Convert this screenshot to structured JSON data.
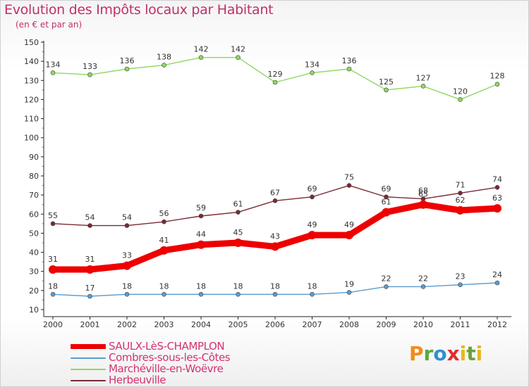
{
  "header": {
    "title": "Evolution des Impôts locaux par Habitant",
    "subtitle": "(en € et par an)"
  },
  "logo": {
    "text": "Proxiti"
  },
  "chart_data": {
    "type": "line",
    "title": "Evolution des Impôts locaux par Habitant",
    "subtitle": "(en € et par an)",
    "xlabel": "",
    "ylabel": "",
    "ylim": [
      10,
      150
    ],
    "yticks": [
      10,
      20,
      30,
      40,
      50,
      60,
      70,
      80,
      90,
      100,
      110,
      120,
      130,
      140,
      150
    ],
    "categories": [
      "2000",
      "2001",
      "2002",
      "2003",
      "2004",
      "2005",
      "2006",
      "2007",
      "2008",
      "2009",
      "2010",
      "2011",
      "2012"
    ],
    "grid": false,
    "legend_position": "bottom-left",
    "series": [
      {
        "name": "SAULX-LèS-CHAMPLON",
        "color": "#ee0000",
        "values": [
          31,
          31,
          33,
          41,
          44,
          45,
          43,
          49,
          49,
          61,
          65,
          62,
          63
        ]
      },
      {
        "name": "Combres-sous-les-Côtes",
        "color": "#5a9cd0",
        "values": [
          18,
          17,
          18,
          18,
          18,
          18,
          18,
          18,
          19,
          22,
          22,
          23,
          24
        ]
      },
      {
        "name": "Marchéville-en-Woëvre",
        "color": "#8ed860",
        "values": [
          134,
          133,
          136,
          138,
          142,
          142,
          129,
          134,
          136,
          125,
          127,
          120,
          128
        ]
      },
      {
        "name": "Herbeuville",
        "color": "#7a2a35",
        "values": [
          55,
          54,
          54,
          56,
          59,
          61,
          67,
          69,
          75,
          69,
          68,
          71,
          74
        ]
      }
    ]
  }
}
